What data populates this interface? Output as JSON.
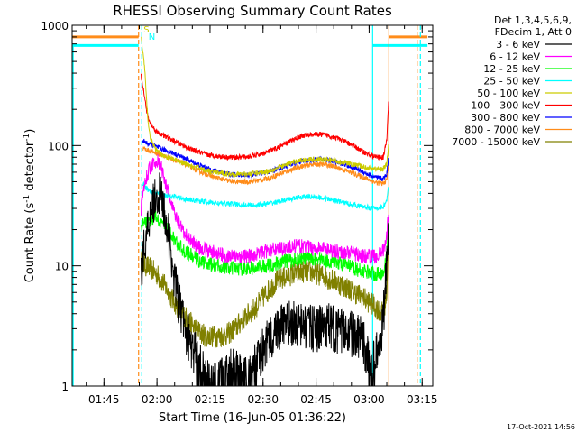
{
  "chart_data": {
    "type": "line",
    "title": "RHESSI Observing Summary Count Rates",
    "xlabel": "Start Time (16-Jun-05 01:36:22)",
    "ylabel_main": "Count Rate (s",
    "ylabel_sup1": "-1",
    "ylabel_mid": " detector",
    "ylabel_sup2": "-1",
    "ylabel_end": ")",
    "footer": "17-Oct-2021 14:56",
    "y_scale": "log",
    "ylim": [
      1,
      1000
    ],
    "xlim_min": [
      96,
      198
    ],
    "y_ticks": [
      {
        "v": 1,
        "label": "1"
      },
      {
        "v": 10,
        "label": "10"
      },
      {
        "v": 100,
        "label": "100"
      },
      {
        "v": 1000,
        "label": "1000"
      }
    ],
    "x_ticks": [
      {
        "m": 105,
        "label": "01:45"
      },
      {
        "m": 120,
        "label": "02:00"
      },
      {
        "m": 135,
        "label": "02:15"
      },
      {
        "m": 150,
        "label": "02:30"
      },
      {
        "m": 165,
        "label": "02:45"
      },
      {
        "m": 180,
        "label": "03:00"
      },
      {
        "m": 195,
        "label": "03:15"
      }
    ],
    "legend_header": [
      "Det 1,3,4,5,6,9,",
      "FDecim 1, Att 0"
    ],
    "legend_placement": "right",
    "series": [
      {
        "name": "3 - 6 keV",
        "color": "#000000",
        "x": [
          115.5,
          116,
          117,
          118,
          119,
          120,
          121,
          122,
          123,
          124,
          125,
          126,
          127,
          128,
          129,
          130,
          131,
          132,
          133,
          134,
          135,
          136,
          138,
          140,
          142,
          144,
          146,
          148,
          150,
          152,
          154,
          156,
          158,
          160,
          162,
          164,
          166,
          168,
          170,
          172,
          174,
          176,
          178,
          180,
          181,
          182,
          183,
          184,
          185,
          185.5
        ],
        "y": [
          9,
          12,
          18,
          28,
          35,
          40,
          38,
          30,
          20,
          12,
          8,
          5,
          4,
          3,
          2.5,
          2,
          1.8,
          1.5,
          1.3,
          1.1,
          1,
          1,
          1.1,
          1.3,
          1.5,
          1.2,
          1.1,
          1.5,
          2,
          2.5,
          3,
          3.2,
          3.3,
          3.2,
          3.1,
          3,
          3,
          3.2,
          3,
          2.8,
          3,
          2.5,
          2.5,
          1.5,
          1.5,
          1.8,
          2,
          3.5,
          10,
          20
        ]
      },
      {
        "name": "6 - 12 keV",
        "color": "#ff00ff",
        "x": [
          115.5,
          116,
          117,
          118,
          119,
          120,
          121,
          122,
          123,
          124,
          125,
          126,
          127,
          128,
          129,
          130,
          131,
          132,
          133,
          134,
          135,
          136,
          138,
          140,
          142,
          144,
          146,
          148,
          150,
          152,
          154,
          156,
          158,
          160,
          162,
          164,
          166,
          168,
          170,
          172,
          174,
          176,
          178,
          180,
          181,
          182,
          183,
          184,
          185,
          185.5
        ],
        "y": [
          30,
          40,
          55,
          65,
          72,
          75,
          68,
          55,
          42,
          33,
          27,
          23,
          20,
          18,
          17,
          16,
          15,
          14,
          14,
          13.5,
          13,
          13,
          12.5,
          12,
          12,
          12,
          12,
          12.5,
          13,
          13.5,
          14,
          14,
          14.5,
          14.5,
          14.5,
          14,
          14,
          14,
          13.5,
          13,
          13,
          12.5,
          12,
          12,
          12,
          12,
          12.5,
          13.5,
          17,
          30
        ]
      },
      {
        "name": "12 - 25 keV",
        "color": "#00ff00",
        "x": [
          115.5,
          116,
          118,
          120,
          122,
          124,
          126,
          128,
          130,
          132,
          134,
          136,
          138,
          140,
          142,
          144,
          146,
          148,
          150,
          152,
          154,
          156,
          158,
          160,
          162,
          164,
          166,
          168,
          170,
          172,
          174,
          176,
          178,
          180,
          182,
          183,
          184,
          185,
          185.5
        ],
        "y": [
          20,
          22,
          24,
          25,
          22,
          18,
          15,
          13,
          12,
          11,
          10.5,
          10,
          10,
          9.5,
          9.5,
          9.5,
          9.5,
          9.5,
          10,
          10,
          10.5,
          11,
          11,
          11.5,
          11.5,
          11.5,
          11.5,
          11,
          11,
          10.5,
          10,
          9.5,
          9,
          9,
          8.5,
          8.5,
          9,
          12,
          25
        ]
      },
      {
        "name": "25 - 50 keV",
        "color": "#00ffff",
        "x": [
          116,
          117,
          118,
          119,
          120,
          122,
          124,
          126,
          128,
          130,
          132,
          134,
          136,
          138,
          140,
          142,
          144,
          146,
          148,
          150,
          152,
          154,
          156,
          158,
          160,
          162,
          164,
          166,
          168,
          170,
          172,
          174,
          176,
          178,
          180,
          182,
          183,
          184,
          185,
          185.5
        ],
        "y": [
          48,
          44,
          42,
          41,
          40,
          39,
          38,
          37,
          36,
          35,
          34.5,
          34,
          33.5,
          33,
          33,
          32.5,
          32,
          32,
          32,
          32.5,
          33,
          34,
          35,
          36,
          37,
          37.5,
          37.5,
          37,
          36,
          35,
          34,
          33,
          32,
          31,
          30.5,
          30,
          30.5,
          31,
          35,
          45
        ]
      },
      {
        "name": "50 - 100 keV",
        "color": "#cccc00",
        "x": [
          115.5,
          116,
          116.5,
          117,
          117.5,
          118,
          119,
          120,
          122,
          124,
          126,
          128,
          130,
          132,
          134,
          136,
          138,
          140,
          142,
          144,
          146,
          148,
          150,
          152,
          154,
          156,
          158,
          160,
          162,
          164,
          166,
          168,
          170,
          172,
          174,
          176,
          178,
          180,
          182,
          184,
          185,
          185.5
        ],
        "y": [
          800,
          600,
          450,
          250,
          160,
          120,
          100,
          90,
          82,
          78,
          74,
          70,
          67,
          65,
          62,
          60,
          59,
          58,
          58,
          58,
          58,
          59,
          60,
          62,
          65,
          68,
          72,
          75,
          76,
          77,
          77,
          76,
          75,
          73,
          71,
          69,
          67,
          65,
          64,
          64,
          70,
          100
        ]
      },
      {
        "name": "100 - 300 keV",
        "color": "#ff0000",
        "x": [
          115.5,
          116,
          116.5,
          117,
          117.5,
          118,
          119,
          120,
          122,
          124,
          126,
          128,
          130,
          132,
          134,
          136,
          138,
          140,
          142,
          144,
          146,
          148,
          150,
          152,
          154,
          156,
          158,
          160,
          162,
          164,
          166,
          168,
          170,
          172,
          174,
          176,
          178,
          180,
          182,
          184,
          185,
          185.5
        ],
        "y": [
          380,
          320,
          250,
          200,
          170,
          155,
          140,
          130,
          120,
          112,
          105,
          98,
          92,
          88,
          84,
          82,
          81,
          80,
          80,
          80,
          81,
          83,
          86,
          90,
          95,
          102,
          110,
          118,
          122,
          124,
          124,
          122,
          118,
          112,
          105,
          98,
          90,
          84,
          80,
          80,
          110,
          230
        ]
      },
      {
        "name": "300 - 800 keV",
        "color": "#0000ff",
        "x": [
          116,
          117,
          118,
          119,
          120,
          122,
          124,
          126,
          128,
          130,
          132,
          134,
          136,
          138,
          140,
          142,
          144,
          146,
          148,
          150,
          152,
          154,
          156,
          158,
          160,
          162,
          164,
          166,
          168,
          170,
          172,
          174,
          176,
          178,
          180,
          182,
          184,
          185,
          185.5
        ],
        "y": [
          110,
          105,
          102,
          100,
          97,
          92,
          88,
          83,
          78,
          73,
          69,
          65,
          62,
          60,
          58,
          57,
          57,
          57,
          58,
          59,
          61,
          64,
          67,
          70,
          73,
          75,
          76,
          77,
          76,
          74,
          71,
          68,
          65,
          61,
          57,
          54,
          53,
          58,
          80
        ]
      },
      {
        "name": "800 - 7000 keV",
        "color": "#ff8c1a",
        "x": [
          116,
          117,
          118,
          119,
          120,
          122,
          124,
          126,
          128,
          130,
          132,
          134,
          136,
          138,
          140,
          142,
          144,
          146,
          148,
          150,
          152,
          154,
          156,
          158,
          160,
          162,
          164,
          166,
          168,
          170,
          172,
          174,
          176,
          178,
          180,
          182,
          184,
          185,
          185.5
        ],
        "y": [
          95,
          92,
          90,
          88,
          86,
          82,
          78,
          74,
          70,
          65,
          61,
          58,
          55,
          53,
          51,
          50,
          50,
          50,
          51,
          52,
          54,
          57,
          60,
          63,
          66,
          68,
          70,
          70,
          69,
          67,
          64,
          61,
          58,
          55,
          52,
          49,
          48,
          52,
          70
        ]
      },
      {
        "name": "7000 - 15000 keV",
        "color": "#808000",
        "x": [
          115.5,
          116,
          118,
          120,
          122,
          124,
          126,
          128,
          130,
          132,
          134,
          136,
          138,
          140,
          142,
          144,
          146,
          148,
          150,
          152,
          154,
          156,
          158,
          160,
          162,
          164,
          166,
          168,
          170,
          172,
          174,
          176,
          178,
          180,
          182,
          183,
          184,
          185,
          185.5
        ],
        "y": [
          11,
          10.5,
          9.5,
          8.5,
          7,
          5.5,
          4.5,
          3.8,
          3.2,
          2.8,
          2.6,
          2.6,
          2.6,
          2.7,
          3,
          3.5,
          4,
          4.5,
          5.5,
          6.5,
          7.5,
          8,
          8.5,
          8.8,
          9,
          8.8,
          8.5,
          8,
          7.5,
          7,
          6.5,
          6,
          5.5,
          5,
          4.5,
          4.2,
          4,
          6,
          20
        ]
      }
    ],
    "annotations": [
      {
        "text": "S",
        "color": "#cccc00",
        "m": 116.2,
        "v": 870
      },
      {
        "text": "N",
        "color": "#00ffff",
        "m": 117.6,
        "v": 760
      }
    ],
    "markers": {
      "cyan_level": 680,
      "orange_level": 800,
      "vlines": [
        {
          "m": 114.8,
          "color": "#ff8c1a",
          "style": "dashed"
        },
        {
          "m": 115.7,
          "color": "#00ffff",
          "style": "dashed"
        },
        {
          "m": 181.0,
          "color": "#00ffff",
          "style": "solid"
        },
        {
          "m": 185.6,
          "color": "#ff8c1a",
          "style": "solid"
        },
        {
          "m": 193.6,
          "color": "#ff8c1a",
          "style": "dashed"
        },
        {
          "m": 194.5,
          "color": "#00ffff",
          "style": "dashed"
        }
      ],
      "cyan_segments": [
        [
          96,
          114.8
        ],
        [
          181.0,
          196.5
        ]
      ],
      "orange_segments": [
        [
          96,
          114.8
        ],
        [
          185.6,
          196.5
        ]
      ]
    }
  }
}
